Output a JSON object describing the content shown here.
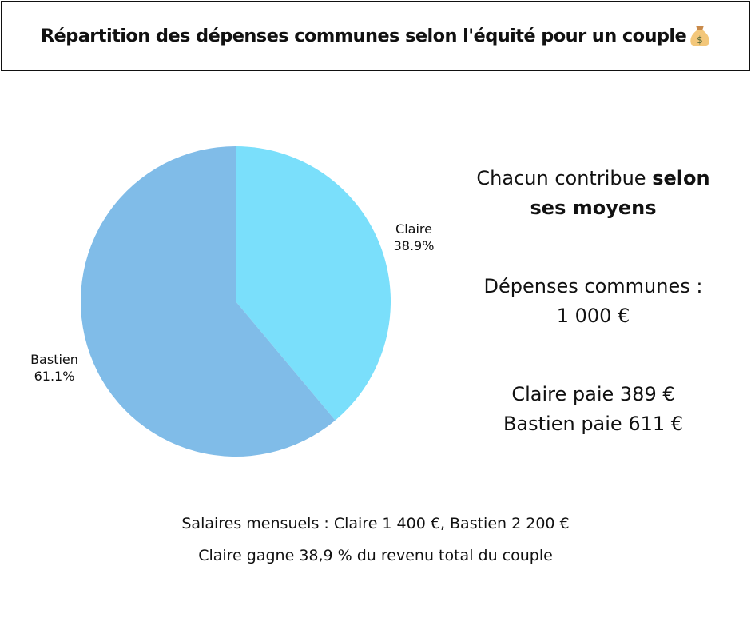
{
  "header": {
    "title": "Répartition des dépenses communes selon l'équité pour un couple",
    "icon": "money-bag-icon"
  },
  "chart_data": {
    "type": "pie",
    "slices": [
      {
        "label": "Claire",
        "value": 38.9,
        "value_label": "38.9%",
        "color": "#7ADFFB"
      },
      {
        "label": "Bastien",
        "value": 61.1,
        "value_label": "61.1%",
        "color": "#80BCE8"
      }
    ],
    "start": "top",
    "direction": "clockwise"
  },
  "side": {
    "line1_normal": "Chacun contribue ",
    "line1_bold": "selon",
    "line2_bold": "ses moyens",
    "expenses_label": "Dépenses communes :",
    "expenses_value": "1 000 €",
    "claire_pays": "Claire paie 389 €",
    "bastien_pays": "Bastien paie 611 €"
  },
  "footer": {
    "salaries": "Salaires mensuels : Claire 1 400 €, Bastien 2 200 €",
    "share": "Claire gagne 38,9 % du revenu total du couple"
  }
}
